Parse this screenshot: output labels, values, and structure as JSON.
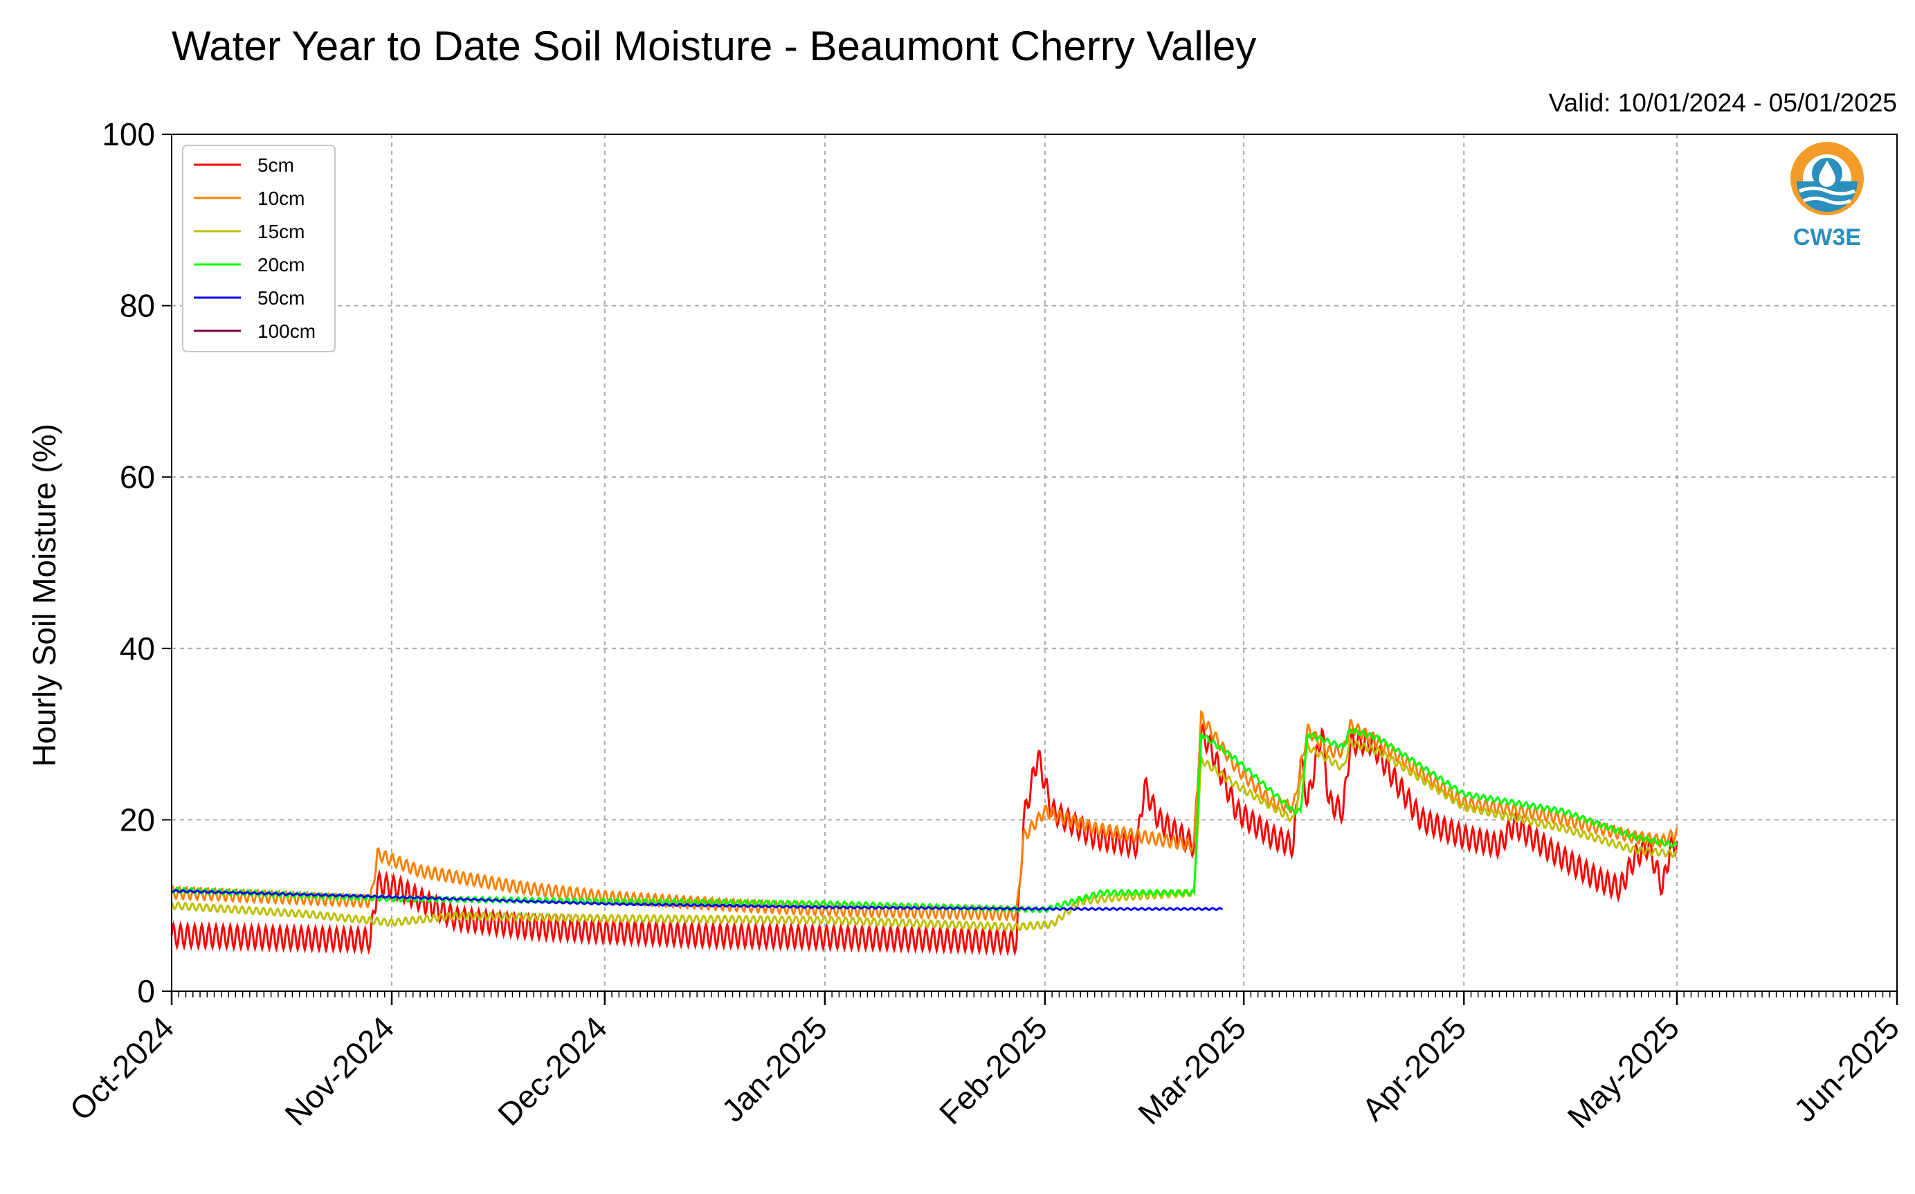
{
  "chart_data": {
    "type": "line",
    "title": "Water Year to Date Soil Moisture - Beaumont Cherry Valley",
    "subtitle": "Valid: 10/01/2024 - 05/01/2025",
    "xlabel": "",
    "ylabel": "Hourly Soil Moisture (%)",
    "ylim": [
      0,
      100
    ],
    "yticks": [
      "0",
      "20",
      "40",
      "60",
      "80",
      "100"
    ],
    "xlim": [
      "2024-10-01",
      "2025-06-01"
    ],
    "xticks": [
      {
        "date": "2024-10-01",
        "label": "Oct-2024"
      },
      {
        "date": "2024-11-01",
        "label": "Nov-2024"
      },
      {
        "date": "2024-12-01",
        "label": "Dec-2024"
      },
      {
        "date": "2025-01-01",
        "label": "Jan-2025"
      },
      {
        "date": "2025-02-01",
        "label": "Feb-2025"
      },
      {
        "date": "2025-03-01",
        "label": "Mar-2025"
      },
      {
        "date": "2025-04-01",
        "label": "Apr-2025"
      },
      {
        "date": "2025-05-01",
        "label": "May-2025"
      },
      {
        "date": "2025-06-01",
        "label": "Jun-2025"
      }
    ],
    "grid": true,
    "legend_position": "upper-left",
    "series": [
      {
        "name": "5cm",
        "color": "#ff0000",
        "diurnal_amplitude": 1.3,
        "points": [
          [
            "2024-10-01",
            6.5
          ],
          [
            "2024-10-29",
            6.0
          ],
          [
            "2024-10-30",
            12.5
          ],
          [
            "2024-11-02",
            12.0
          ],
          [
            "2024-11-10",
            8.5
          ],
          [
            "2024-11-20",
            7.5
          ],
          [
            "2024-12-01",
            7.0
          ],
          [
            "2024-12-15",
            6.5
          ],
          [
            "2025-01-01",
            6.3
          ],
          [
            "2025-01-20",
            6.0
          ],
          [
            "2025-01-28",
            5.8
          ],
          [
            "2025-01-29",
            20.0
          ],
          [
            "2025-01-31",
            27.5
          ],
          [
            "2025-02-02",
            21.0
          ],
          [
            "2025-02-08",
            18.0
          ],
          [
            "2025-02-14",
            17.0
          ],
          [
            "2025-02-15",
            24.0
          ],
          [
            "2025-02-17",
            20.0
          ],
          [
            "2025-02-22",
            17.0
          ],
          [
            "2025-02-23",
            30.0
          ],
          [
            "2025-02-24",
            29.0
          ],
          [
            "2025-02-28",
            21.0
          ],
          [
            "2025-03-05",
            18.0
          ],
          [
            "2025-03-08",
            17.0
          ],
          [
            "2025-03-09",
            27.0
          ],
          [
            "2025-03-10",
            22.0
          ],
          [
            "2025-03-12",
            30.5
          ],
          [
            "2025-03-13",
            22.0
          ],
          [
            "2025-03-15",
            21.0
          ],
          [
            "2025-03-16",
            29.0
          ],
          [
            "2025-03-19",
            29.0
          ],
          [
            "2025-03-22",
            25.0
          ],
          [
            "2025-03-26",
            20.0
          ],
          [
            "2025-04-01",
            18.0
          ],
          [
            "2025-04-06",
            17.0
          ],
          [
            "2025-04-08",
            19.5
          ],
          [
            "2025-04-13",
            16.5
          ],
          [
            "2025-04-20",
            13.0
          ],
          [
            "2025-04-23",
            12.0
          ],
          [
            "2025-04-25",
            15.5
          ],
          [
            "2025-04-27",
            17.0
          ],
          [
            "2025-04-29",
            12.0
          ],
          [
            "2025-04-30",
            16.5
          ],
          [
            "2025-05-01",
            17.5
          ]
        ]
      },
      {
        "name": "10cm",
        "color": "#ff8000",
        "diurnal_amplitude": 0.7,
        "points": [
          [
            "2024-10-01",
            11.5
          ],
          [
            "2024-10-29",
            10.5
          ],
          [
            "2024-10-30",
            16.0
          ],
          [
            "2024-11-05",
            14.0
          ],
          [
            "2024-11-20",
            12.0
          ],
          [
            "2024-12-01",
            11.0
          ],
          [
            "2024-12-20",
            10.0
          ],
          [
            "2025-01-01",
            9.5
          ],
          [
            "2025-01-28",
            9.0
          ],
          [
            "2025-01-29",
            18.0
          ],
          [
            "2025-02-01",
            21.0
          ],
          [
            "2025-02-08",
            19.0
          ],
          [
            "2025-02-15",
            18.0
          ],
          [
            "2025-02-22",
            17.0
          ],
          [
            "2025-02-23",
            32.0
          ],
          [
            "2025-02-28",
            26.0
          ],
          [
            "2025-03-05",
            22.0
          ],
          [
            "2025-03-08",
            21.5
          ],
          [
            "2025-03-10",
            30.5
          ],
          [
            "2025-03-13",
            28.0
          ],
          [
            "2025-03-15",
            28.0
          ],
          [
            "2025-03-16",
            31.0
          ],
          [
            "2025-03-20",
            29.0
          ],
          [
            "2025-04-01",
            22.0
          ],
          [
            "2025-04-13",
            20.5
          ],
          [
            "2025-04-25",
            18.0
          ],
          [
            "2025-04-29",
            17.5
          ],
          [
            "2025-05-01",
            18.5
          ]
        ]
      },
      {
        "name": "15cm",
        "color": "#bfbf00",
        "diurnal_amplitude": 0.4,
        "points": [
          [
            "2024-10-01",
            10.0
          ],
          [
            "2024-10-20",
            9.0
          ],
          [
            "2024-11-01",
            8.0
          ],
          [
            "2024-11-10",
            8.8
          ],
          [
            "2024-12-01",
            8.5
          ],
          [
            "2025-01-01",
            8.3
          ],
          [
            "2025-01-28",
            7.5
          ],
          [
            "2025-02-02",
            7.8
          ],
          [
            "2025-02-06",
            10.5
          ],
          [
            "2025-02-12",
            11.0
          ],
          [
            "2025-02-22",
            11.5
          ],
          [
            "2025-02-23",
            27.0
          ],
          [
            "2025-02-28",
            24.0
          ],
          [
            "2025-03-08",
            20.0
          ],
          [
            "2025-03-10",
            28.5
          ],
          [
            "2025-03-13",
            27.0
          ],
          [
            "2025-03-15",
            26.0
          ],
          [
            "2025-03-16",
            29.0
          ],
          [
            "2025-03-20",
            28.0
          ],
          [
            "2025-04-01",
            21.5
          ],
          [
            "2025-04-15",
            19.0
          ],
          [
            "2025-04-25",
            16.5
          ],
          [
            "2025-05-01",
            16.0
          ]
        ]
      },
      {
        "name": "20cm",
        "color": "#00ff00",
        "diurnal_amplitude": 0.3,
        "points": [
          [
            "2024-10-01",
            11.8
          ],
          [
            "2024-11-01",
            10.8
          ],
          [
            "2024-12-01",
            10.5
          ],
          [
            "2025-01-01",
            10.2
          ],
          [
            "2025-02-01",
            9.5
          ],
          [
            "2025-02-05",
            10.5
          ],
          [
            "2025-02-09",
            11.5
          ],
          [
            "2025-02-22",
            11.5
          ],
          [
            "2025-02-23",
            30.0
          ],
          [
            "2025-02-28",
            27.0
          ],
          [
            "2025-03-08",
            21.0
          ],
          [
            "2025-03-09",
            21.0
          ],
          [
            "2025-03-10",
            30.0
          ],
          [
            "2025-03-15",
            28.5
          ],
          [
            "2025-03-16",
            30.5
          ],
          [
            "2025-03-20",
            29.5
          ],
          [
            "2025-04-01",
            23.0
          ],
          [
            "2025-04-15",
            21.0
          ],
          [
            "2025-04-25",
            18.0
          ],
          [
            "2025-05-01",
            17.0
          ]
        ]
      },
      {
        "name": "50cm",
        "color": "#0000ff",
        "diurnal_amplitude": 0.1,
        "points": [
          [
            "2024-10-01",
            11.7
          ],
          [
            "2024-11-01",
            11.0
          ],
          [
            "2024-12-01",
            10.2
          ],
          [
            "2025-01-01",
            9.8
          ],
          [
            "2025-02-01",
            9.6
          ],
          [
            "2025-02-15",
            9.6
          ],
          [
            "2025-02-26",
            9.6
          ]
        ]
      },
      {
        "name": "100cm",
        "color": "#800040",
        "diurnal_amplitude": 0,
        "points": []
      }
    ]
  },
  "logo": {
    "text": "CW3E",
    "colors": {
      "orange": "#f39c2a",
      "blue": "#2a8fbd",
      "drop": "#ffffff"
    }
  }
}
